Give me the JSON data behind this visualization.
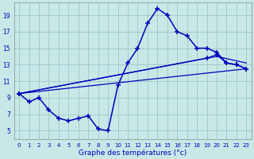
{
  "xlabel": "Graphe des températures (°c)",
  "bg_color": "#c8e8e8",
  "grid_color": "#a0cccc",
  "line_color": "#0000bb",
  "hours": [
    0,
    1,
    2,
    3,
    4,
    5,
    6,
    7,
    8,
    9,
    10,
    11,
    12,
    13,
    14,
    15,
    16,
    17,
    18,
    19,
    20,
    21,
    22,
    23
  ],
  "temp_actual": [
    9.5,
    8.5,
    9.0,
    7.5,
    6.5,
    6.2,
    6.5,
    6.8,
    5.2,
    5.0,
    10.5,
    13.2,
    15.0,
    18.0,
    19.8,
    19.0,
    17.0,
    16.5,
    15.0,
    15.0,
    14.5,
    13.2,
    13.0,
    12.5
  ],
  "temp_line1": [
    9.5,
    12.5
  ],
  "temp_line1_x": [
    0,
    23
  ],
  "temp_line2_x": [
    0,
    20,
    23
  ],
  "temp_line2": [
    9.5,
    14.0,
    13.2
  ],
  "temp_line3_x": [
    0,
    19,
    20,
    21,
    22,
    23
  ],
  "temp_line3": [
    9.5,
    13.8,
    14.2,
    13.2,
    13.0,
    12.5
  ],
  "ylim": [
    4.0,
    20.5
  ],
  "xlim": [
    -0.5,
    23.5
  ],
  "yticks": [
    5,
    7,
    9,
    11,
    13,
    15,
    17,
    19
  ],
  "xticks": [
    0,
    1,
    2,
    3,
    4,
    5,
    6,
    7,
    8,
    9,
    10,
    11,
    12,
    13,
    14,
    15,
    16,
    17,
    18,
    19,
    20,
    21,
    22,
    23
  ]
}
